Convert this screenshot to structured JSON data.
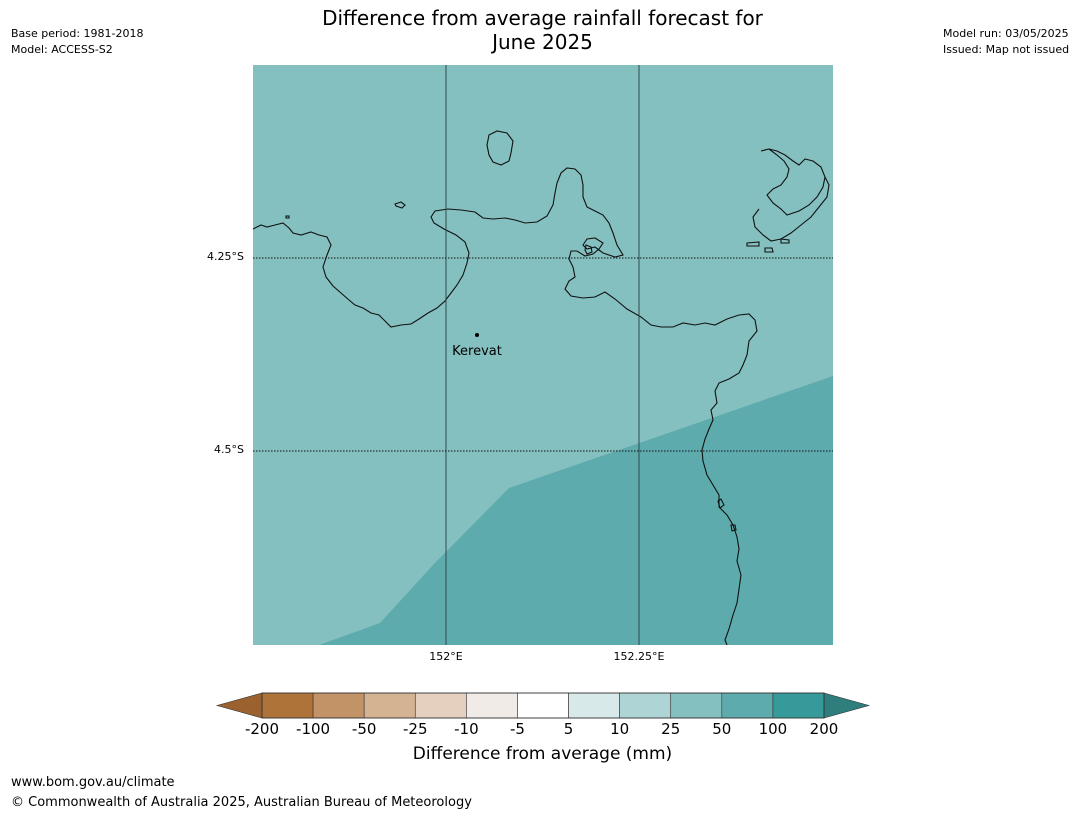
{
  "title_line1": "Difference from average rainfall forecast for",
  "title_line2": "June 2025",
  "meta_left": {
    "base_period": "Base period: 1981-2018",
    "model": "Model: ACCESS-S2"
  },
  "meta_right": {
    "model_run": "Model run: 03/05/2025",
    "issued": "Issued: Map not issued"
  },
  "map": {
    "lat_ticks": [
      "4.25°S",
      "4.5°S"
    ],
    "lon_ticks": [
      "152°E",
      "152.25°E"
    ],
    "place_label": "Kerevat",
    "fill_colors": {
      "light": "#85c0c0",
      "dark": "#5eabad"
    }
  },
  "colorbar": {
    "title": "Difference from average (mm)",
    "labels": [
      "-200",
      "-100",
      "-50",
      "-25",
      "-10",
      "-5",
      "5",
      "10",
      "25",
      "50",
      "100",
      "200"
    ],
    "colors": [
      "#ae7339",
      "#c29367",
      "#d4b393",
      "#e5d0bf",
      "#f0ebe7",
      "#ffffff",
      "#d8e9ea",
      "#aed4d5",
      "#85c0c0",
      "#5eabad",
      "#369a9a"
    ],
    "under_color": "#9b6230",
    "over_color": "#2e7e7d"
  },
  "footer": {
    "url": "www.bom.gov.au/climate",
    "copyright": "© Commonwealth of Australia 2025, Australian Bureau of Meteorology"
  }
}
